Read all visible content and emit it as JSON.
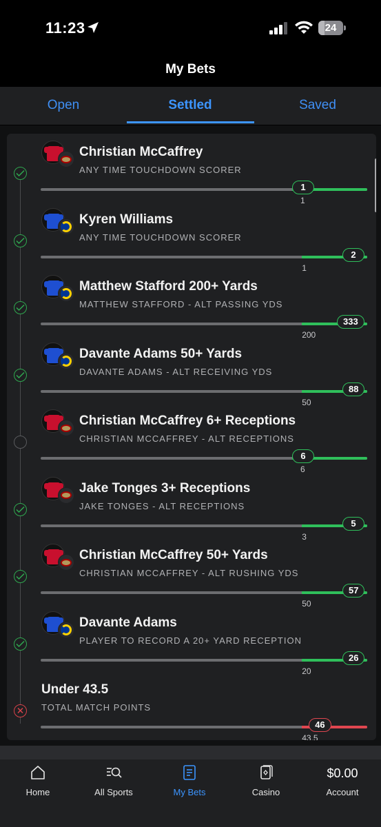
{
  "status_bar": {
    "time": "11:23",
    "battery": "24"
  },
  "header": {
    "title": "My Bets"
  },
  "tabs": [
    {
      "label": "Open"
    },
    {
      "label": "Settled"
    },
    {
      "label": "Saved"
    }
  ],
  "legs": [
    {
      "title": "Christian McCaffrey",
      "subtitle": "ANY TIME TOUCHDOWN SCORER",
      "team": "49ers",
      "status": "won",
      "line_label": "1",
      "actual_label": "1",
      "progress_pct": 77
    },
    {
      "title": "Kyren Williams",
      "subtitle": "ANY TIME TOUCHDOWN SCORER",
      "team": "Rams",
      "status": "won",
      "line_label": "1",
      "actual_label": "2",
      "progress_pct": 100
    },
    {
      "title": "Matthew Stafford 200+ Yards",
      "subtitle": "MATTHEW STAFFORD - ALT PASSING YDS",
      "team": "Rams",
      "status": "won",
      "line_label": "200",
      "actual_label": "333",
      "progress_pct": 100
    },
    {
      "title": "Davante Adams 50+ Yards",
      "subtitle": "DAVANTE ADAMS - ALT RECEIVING YDS",
      "team": "Rams",
      "status": "won",
      "line_label": "50",
      "actual_label": "88",
      "progress_pct": 100
    },
    {
      "title": "Christian McCaffrey 6+ Receptions",
      "subtitle": "CHRISTIAN MCCAFFREY - ALT RECEPTIONS",
      "team": "49ers",
      "status": "pending",
      "line_label": "6",
      "actual_label": "6",
      "progress_pct": 77
    },
    {
      "title": "Jake Tonges 3+ Receptions",
      "subtitle": "JAKE TONGES - ALT RECEPTIONS",
      "team": "49ers",
      "status": "won",
      "line_label": "3",
      "actual_label": "5",
      "progress_pct": 100
    },
    {
      "title": "Christian McCaffrey 50+ Yards",
      "subtitle": "CHRISTIAN MCCAFFREY - ALT RUSHING YDS",
      "team": "49ers",
      "status": "won",
      "line_label": "50",
      "actual_label": "57",
      "progress_pct": 100
    },
    {
      "title": "Davante Adams",
      "subtitle": "PLAYER TO RECORD A 20+ YARD RECEPTION",
      "team": "Rams",
      "status": "won",
      "line_label": "20",
      "actual_label": "26",
      "progress_pct": 100
    },
    {
      "title": "Under 43.5",
      "subtitle": "TOTAL MATCH POINTS",
      "team": "",
      "status": "lost",
      "line_label": "43.5",
      "actual_label": "46",
      "progress_pct": 100
    }
  ],
  "bottom_nav": [
    {
      "label": "Home",
      "icon": "home-icon"
    },
    {
      "label": "All Sports",
      "icon": "search-icon"
    },
    {
      "label": "My Bets",
      "icon": "bet-slip-icon"
    },
    {
      "label": "Casino",
      "icon": "cards-icon"
    },
    {
      "label": "Account",
      "balance": "$0.00"
    }
  ],
  "colors": {
    "accent": "#3c95ff",
    "won": "#2fbf5b",
    "lost": "#e04650",
    "card": "#1f2022"
  }
}
